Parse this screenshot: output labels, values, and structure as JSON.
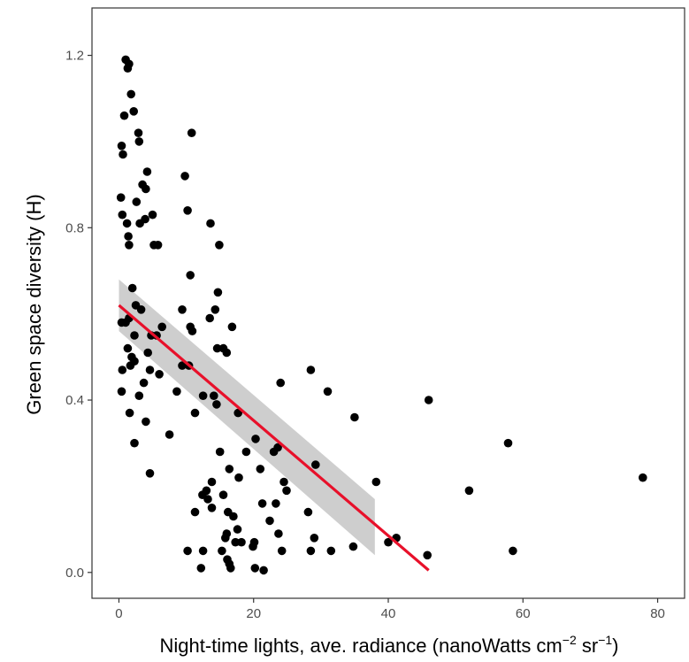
{
  "chart_data": {
    "type": "scatter",
    "title": "",
    "xlabel": "Night-time lights, ave. radiance (nanoWatts cm",
    "xlabel_sup1": "−2",
    "xlabel_mid": " sr",
    "xlabel_sup2": "−1",
    "xlabel_end": ")",
    "ylabel": "Green space diversity (H)",
    "xlim": [
      -4,
      84
    ],
    "ylim": [
      -0.06,
      1.31
    ],
    "xticks": [
      0,
      20,
      40,
      60,
      80
    ],
    "yticks": [
      0.0,
      0.4,
      0.8,
      1.2
    ],
    "xtick_labels": [
      "0",
      "20",
      "40",
      "60",
      "80"
    ],
    "ytick_labels": [
      "0.0",
      "0.4",
      "0.8",
      "1.2"
    ],
    "grid": false,
    "legend": "none",
    "colors": {
      "points": "#000000",
      "fit_line": "#e8102a",
      "confidence_band": "#bdbdbd"
    },
    "points": [
      {
        "x": 1.0,
        "y": 1.19
      },
      {
        "x": 1.3,
        "y": 1.17
      },
      {
        "x": 1.5,
        "y": 1.18
      },
      {
        "x": 1.8,
        "y": 1.11
      },
      {
        "x": 2.2,
        "y": 1.07
      },
      {
        "x": 0.8,
        "y": 1.06
      },
      {
        "x": 2.9,
        "y": 1.02
      },
      {
        "x": 3.0,
        "y": 1.0
      },
      {
        "x": 0.4,
        "y": 0.99
      },
      {
        "x": 0.6,
        "y": 0.97
      },
      {
        "x": 4.2,
        "y": 0.93
      },
      {
        "x": 3.5,
        "y": 0.9
      },
      {
        "x": 4.0,
        "y": 0.89
      },
      {
        "x": 0.3,
        "y": 0.87
      },
      {
        "x": 2.6,
        "y": 0.86
      },
      {
        "x": 0.5,
        "y": 0.83
      },
      {
        "x": 3.9,
        "y": 0.82
      },
      {
        "x": 1.2,
        "y": 0.81
      },
      {
        "x": 3.1,
        "y": 0.81
      },
      {
        "x": 5.0,
        "y": 0.83
      },
      {
        "x": 1.4,
        "y": 0.78
      },
      {
        "x": 1.5,
        "y": 0.76
      },
      {
        "x": 5.2,
        "y": 0.76
      },
      {
        "x": 5.8,
        "y": 0.76
      },
      {
        "x": 2.0,
        "y": 0.66
      },
      {
        "x": 2.5,
        "y": 0.62
      },
      {
        "x": 3.3,
        "y": 0.61
      },
      {
        "x": 1.5,
        "y": 0.59
      },
      {
        "x": 0.4,
        "y": 0.58
      },
      {
        "x": 1.0,
        "y": 0.58
      },
      {
        "x": 6.4,
        "y": 0.57
      },
      {
        "x": 2.3,
        "y": 0.55
      },
      {
        "x": 4.8,
        "y": 0.55
      },
      {
        "x": 5.6,
        "y": 0.55
      },
      {
        "x": 1.3,
        "y": 0.52
      },
      {
        "x": 4.3,
        "y": 0.51
      },
      {
        "x": 1.9,
        "y": 0.5
      },
      {
        "x": 2.3,
        "y": 0.49
      },
      {
        "x": 1.7,
        "y": 0.48
      },
      {
        "x": 0.5,
        "y": 0.47
      },
      {
        "x": 4.6,
        "y": 0.47
      },
      {
        "x": 6.0,
        "y": 0.46
      },
      {
        "x": 3.7,
        "y": 0.44
      },
      {
        "x": 3.0,
        "y": 0.41
      },
      {
        "x": 0.4,
        "y": 0.42
      },
      {
        "x": 1.6,
        "y": 0.37
      },
      {
        "x": 4.0,
        "y": 0.35
      },
      {
        "x": 7.5,
        "y": 0.32
      },
      {
        "x": 2.3,
        "y": 0.3
      },
      {
        "x": 4.6,
        "y": 0.23
      },
      {
        "x": 10.8,
        "y": 1.02
      },
      {
        "x": 9.8,
        "y": 0.92
      },
      {
        "x": 10.2,
        "y": 0.84
      },
      {
        "x": 13.6,
        "y": 0.81
      },
      {
        "x": 14.9,
        "y": 0.76
      },
      {
        "x": 10.6,
        "y": 0.69
      },
      {
        "x": 14.7,
        "y": 0.65
      },
      {
        "x": 9.4,
        "y": 0.61
      },
      {
        "x": 14.3,
        "y": 0.61
      },
      {
        "x": 13.5,
        "y": 0.59
      },
      {
        "x": 10.6,
        "y": 0.57
      },
      {
        "x": 10.9,
        "y": 0.56
      },
      {
        "x": 16.8,
        "y": 0.57
      },
      {
        "x": 14.6,
        "y": 0.52
      },
      {
        "x": 15.5,
        "y": 0.52
      },
      {
        "x": 16.0,
        "y": 0.51
      },
      {
        "x": 9.4,
        "y": 0.48
      },
      {
        "x": 10.4,
        "y": 0.48
      },
      {
        "x": 8.6,
        "y": 0.42
      },
      {
        "x": 12.5,
        "y": 0.41
      },
      {
        "x": 14.1,
        "y": 0.41
      },
      {
        "x": 14.5,
        "y": 0.39
      },
      {
        "x": 11.3,
        "y": 0.37
      },
      {
        "x": 17.7,
        "y": 0.37
      },
      {
        "x": 15.0,
        "y": 0.28
      },
      {
        "x": 18.9,
        "y": 0.28
      },
      {
        "x": 20.3,
        "y": 0.31
      },
      {
        "x": 16.4,
        "y": 0.24
      },
      {
        "x": 21.0,
        "y": 0.24
      },
      {
        "x": 23.0,
        "y": 0.28
      },
      {
        "x": 23.6,
        "y": 0.29
      },
      {
        "x": 17.8,
        "y": 0.22
      },
      {
        "x": 13.8,
        "y": 0.21
      },
      {
        "x": 13.0,
        "y": 0.19
      },
      {
        "x": 13.2,
        "y": 0.17
      },
      {
        "x": 12.4,
        "y": 0.18
      },
      {
        "x": 15.5,
        "y": 0.18
      },
      {
        "x": 13.8,
        "y": 0.15
      },
      {
        "x": 11.3,
        "y": 0.14
      },
      {
        "x": 16.2,
        "y": 0.14
      },
      {
        "x": 17.0,
        "y": 0.13
      },
      {
        "x": 17.6,
        "y": 0.1
      },
      {
        "x": 16.0,
        "y": 0.09
      },
      {
        "x": 15.8,
        "y": 0.08
      },
      {
        "x": 17.3,
        "y": 0.07
      },
      {
        "x": 18.2,
        "y": 0.07
      },
      {
        "x": 19.9,
        "y": 0.06
      },
      {
        "x": 20.1,
        "y": 0.07
      },
      {
        "x": 10.2,
        "y": 0.05
      },
      {
        "x": 12.5,
        "y": 0.05
      },
      {
        "x": 15.3,
        "y": 0.05
      },
      {
        "x": 16.1,
        "y": 0.03
      },
      {
        "x": 16.4,
        "y": 0.02
      },
      {
        "x": 16.6,
        "y": 0.01
      },
      {
        "x": 12.2,
        "y": 0.01
      },
      {
        "x": 20.2,
        "y": 0.01
      },
      {
        "x": 21.5,
        "y": 0.005
      },
      {
        "x": 21.3,
        "y": 0.16
      },
      {
        "x": 22.4,
        "y": 0.12
      },
      {
        "x": 24.0,
        "y": 0.44
      },
      {
        "x": 24.5,
        "y": 0.21
      },
      {
        "x": 24.9,
        "y": 0.19
      },
      {
        "x": 23.3,
        "y": 0.16
      },
      {
        "x": 23.7,
        "y": 0.09
      },
      {
        "x": 24.2,
        "y": 0.05
      },
      {
        "x": 28.5,
        "y": 0.47
      },
      {
        "x": 31.0,
        "y": 0.42
      },
      {
        "x": 29.2,
        "y": 0.25
      },
      {
        "x": 28.1,
        "y": 0.14
      },
      {
        "x": 29.0,
        "y": 0.08
      },
      {
        "x": 28.5,
        "y": 0.05
      },
      {
        "x": 31.5,
        "y": 0.05
      },
      {
        "x": 35.0,
        "y": 0.36
      },
      {
        "x": 34.8,
        "y": 0.06
      },
      {
        "x": 38.2,
        "y": 0.21
      },
      {
        "x": 40.0,
        "y": 0.07
      },
      {
        "x": 41.2,
        "y": 0.08
      },
      {
        "x": 46.0,
        "y": 0.4
      },
      {
        "x": 45.8,
        "y": 0.04
      },
      {
        "x": 52.0,
        "y": 0.19
      },
      {
        "x": 57.8,
        "y": 0.3
      },
      {
        "x": 58.5,
        "y": 0.05
      },
      {
        "x": 77.8,
        "y": 0.22
      }
    ],
    "trend_line": {
      "x": [
        0,
        46
      ],
      "y": [
        0.62,
        0.005
      ]
    },
    "confidence_band": {
      "x": [
        0,
        38
      ],
      "upper": [
        0.68,
        0.17
      ],
      "lower": [
        0.56,
        0.04
      ]
    }
  }
}
